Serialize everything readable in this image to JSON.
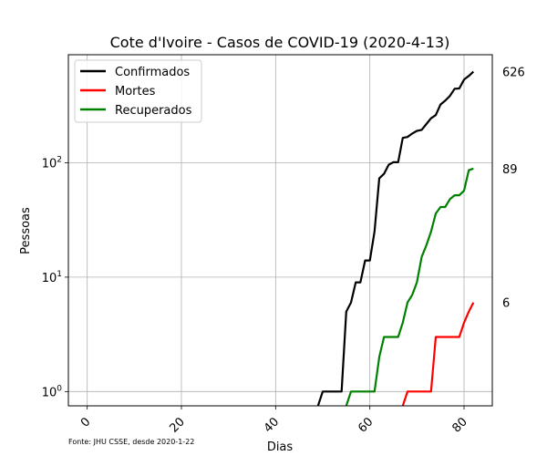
{
  "chart_data": {
    "type": "line",
    "title": "Cote d'Ivoire - Casos de COVID-19 (2020-4-13)",
    "xlabel": "Dias",
    "ylabel": "Pessoas",
    "source_note": "Fonte: JHU CSSE, desde 2020-1-22",
    "y_scale": "log",
    "xlim": [
      -4,
      86
    ],
    "ylim": [
      0.75,
      880
    ],
    "x_ticks": [
      0,
      20,
      40,
      60,
      80
    ],
    "y_ticks": [
      {
        "value": 1,
        "base": "10",
        "exp": "0"
      },
      {
        "value": 10,
        "base": "10",
        "exp": "1"
      },
      {
        "value": 100,
        "base": "10",
        "exp": "2"
      }
    ],
    "grid": true,
    "legend_position": "top-left",
    "series": [
      {
        "name": "Confirmados",
        "color": "#000000",
        "end_label": "626",
        "x": [
          49,
          50,
          51,
          52,
          53,
          54,
          55,
          56,
          57,
          58,
          59,
          60,
          61,
          62,
          63,
          64,
          65,
          66,
          67,
          68,
          69,
          70,
          71,
          72,
          73,
          74,
          75,
          76,
          77,
          78,
          79,
          80,
          81,
          82
        ],
        "y": [
          0.75,
          1,
          1,
          1,
          1,
          1,
          5,
          6,
          9,
          9,
          14,
          14,
          25,
          73,
          80,
          96,
          101,
          101,
          165,
          168,
          180,
          190,
          194,
          218,
          245,
          261,
          323,
          349,
          384,
          444,
          446,
          533,
          574,
          626
        ]
      },
      {
        "name": "Mortes",
        "color": "#ff0000",
        "end_label": "6",
        "x": [
          67,
          68,
          69,
          70,
          71,
          72,
          73,
          74,
          75,
          76,
          77,
          78,
          79,
          80,
          81,
          82
        ],
        "y": [
          0.75,
          1,
          1,
          1,
          1,
          1,
          1,
          3,
          3,
          3,
          3,
          3,
          3,
          4,
          5,
          6
        ]
      },
      {
        "name": "Recuperados",
        "color": "#008000",
        "end_label": "89",
        "x": [
          55,
          56,
          57,
          58,
          59,
          60,
          61,
          62,
          63,
          64,
          65,
          66,
          67,
          68,
          69,
          70,
          71,
          72,
          73,
          74,
          75,
          76,
          77,
          78,
          79,
          80,
          81,
          82
        ],
        "y": [
          0.75,
          1,
          1,
          1,
          1,
          1,
          1,
          2,
          3,
          3,
          3,
          3,
          4,
          6,
          7,
          9,
          15,
          19,
          25,
          36,
          41,
          41,
          48,
          52,
          52,
          57,
          86,
          89
        ]
      }
    ]
  }
}
